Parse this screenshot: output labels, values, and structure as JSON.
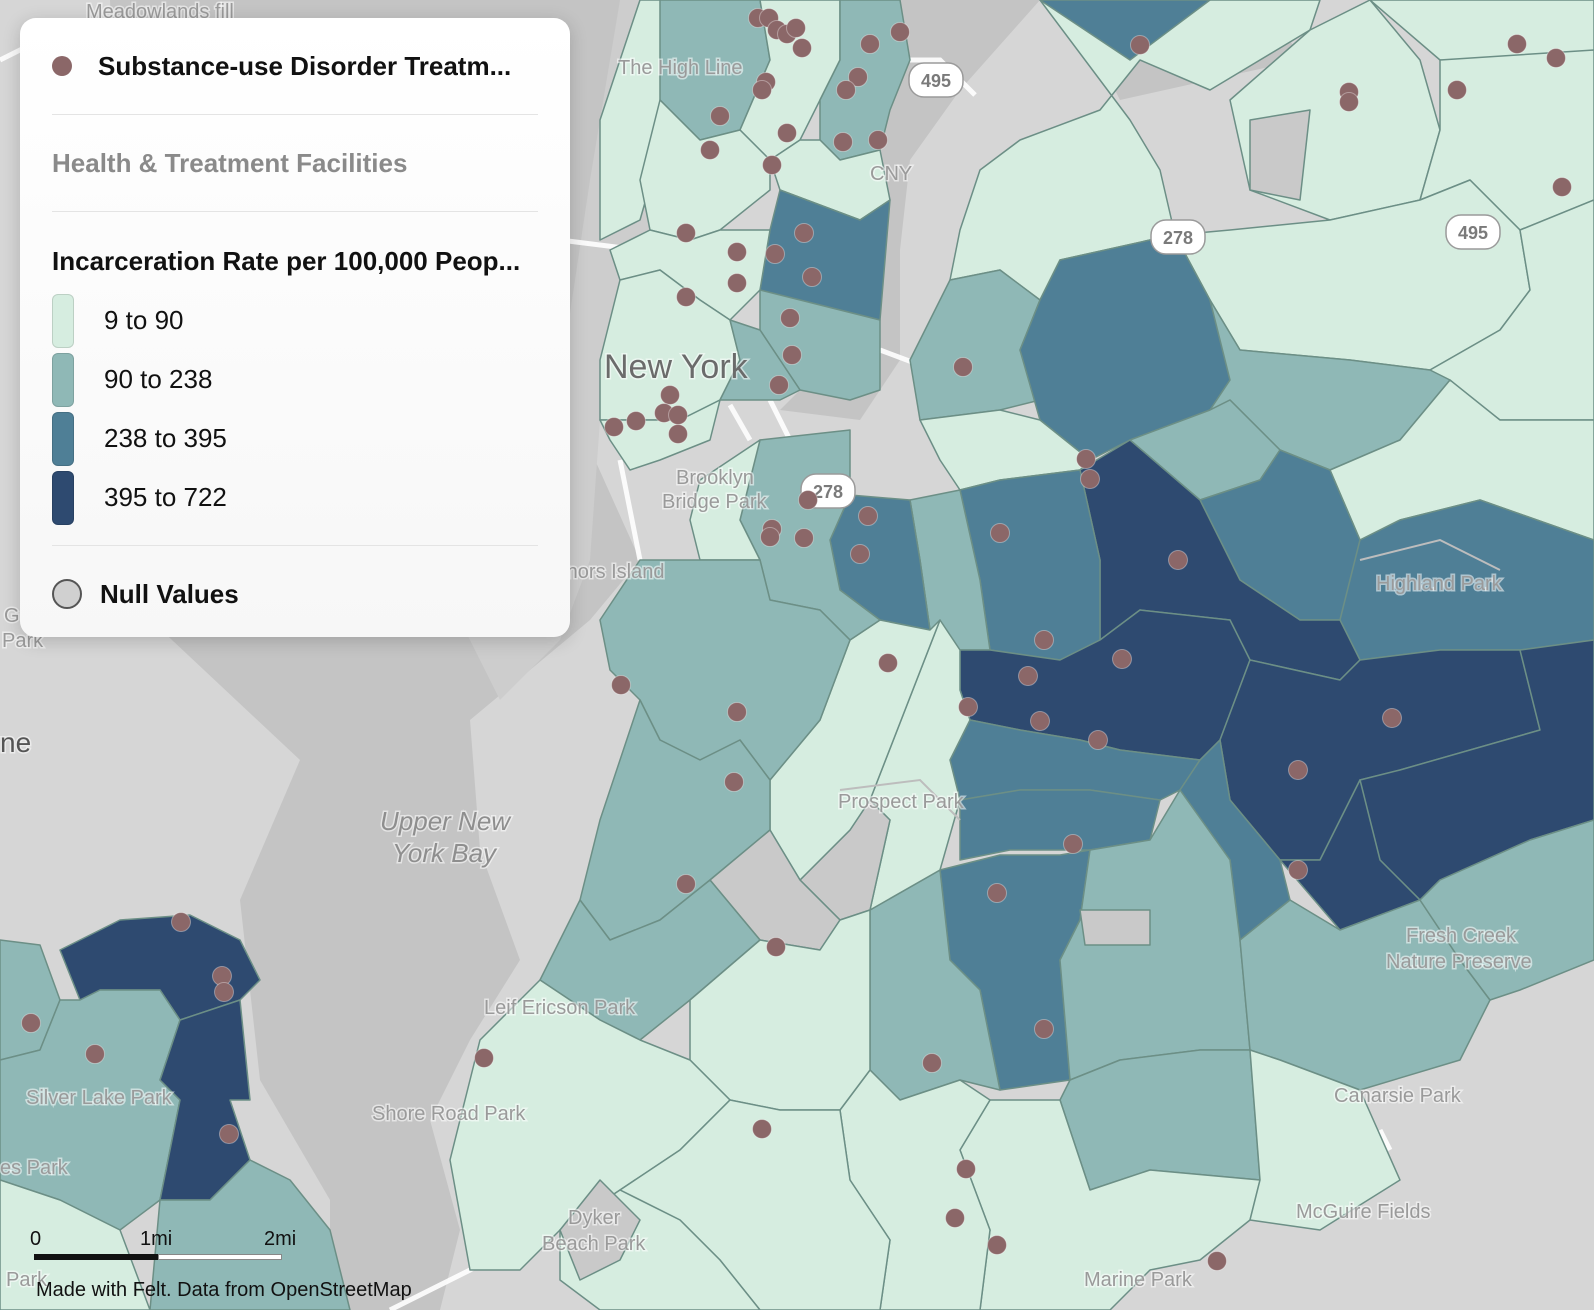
{
  "map": {
    "place_labels": [
      {
        "text": "New York",
        "cls": "city"
      },
      {
        "text": "The High Line",
        "cls": "park"
      },
      {
        "text": "Brooklyn",
        "cls": "park"
      },
      {
        "text": "Bridge Park",
        "cls": "park"
      },
      {
        "text": "rnors Island",
        "cls": "park"
      },
      {
        "text": "Upper New",
        "cls": "water"
      },
      {
        "text": "York Bay",
        "cls": "water"
      },
      {
        "text": "Prospect Park",
        "cls": "park"
      },
      {
        "text": "Highland Park",
        "cls": "park"
      },
      {
        "text": "Leif Ericson Park",
        "cls": "park"
      },
      {
        "text": "Shore Road Park",
        "cls": "park"
      },
      {
        "text": "Dyker",
        "cls": "park"
      },
      {
        "text": "Beach Park",
        "cls": "park"
      },
      {
        "text": "Canarsie Park",
        "cls": "park"
      },
      {
        "text": "McGuire Fields",
        "cls": "park"
      },
      {
        "text": "Marine Park",
        "cls": "park"
      },
      {
        "text": "Fresh Creek",
        "cls": "park"
      },
      {
        "text": "Nature Preserve",
        "cls": "park"
      },
      {
        "text": "Silver Lake Park",
        "cls": "park"
      },
      {
        "text": "es Park",
        "cls": "park"
      },
      {
        "text": "Park",
        "cls": "park"
      },
      {
        "text": "G",
        "cls": "park"
      },
      {
        "text": "Park",
        "cls": "park"
      },
      {
        "text": "ne",
        "cls": "big"
      },
      {
        "text": "CNY",
        "cls": "park"
      },
      {
        "text": "Meadowlands fill",
        "cls": "park"
      }
    ],
    "highway_shields": [
      "495",
      "495",
      "278",
      "278"
    ],
    "colors": {
      "class_1": "#d6ede0",
      "class_2": "#8fb8b6",
      "class_3": "#4f7f96",
      "class_4": "#2e4a70",
      "null": "#c9c9c9",
      "facility_point": "#8b6768"
    }
  },
  "legend": {
    "point_layer": "Substance-use Disorder Treatm...",
    "group_title": "Health & Treatment Facilities",
    "choropleth_title": "Incarceration Rate per 100,000 Peop...",
    "classes": [
      {
        "label": "9 to 90",
        "color": "#d6ede0"
      },
      {
        "label": "90 to 238",
        "color": "#8fb8b6"
      },
      {
        "label": "238 to 395",
        "color": "#4f7f96"
      },
      {
        "label": "395 to 722",
        "color": "#2e4a70"
      }
    ],
    "null_label": "Null Values"
  },
  "scale": {
    "ticks": [
      "0",
      "1mi",
      "2mi"
    ]
  },
  "attribution": "Made with Felt. Data from OpenStreetMap"
}
